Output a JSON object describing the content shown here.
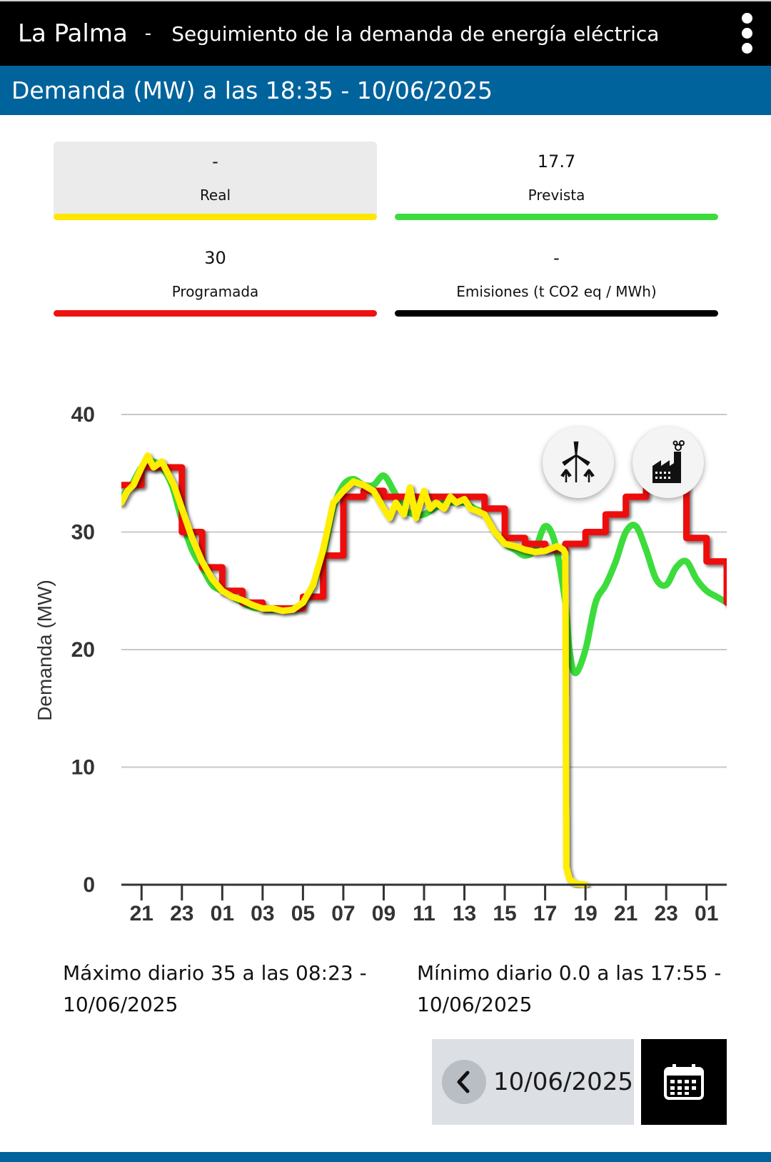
{
  "app": {
    "name": "La Palma",
    "separator": "-",
    "subtitle": "Seguimiento de la demanda de energía eléctrica"
  },
  "header": {
    "title_bold": "Demanda (MW)",
    "title_rest": " a las 18:35 - 10/06/2025"
  },
  "cards": {
    "real": {
      "value": "-",
      "label": "Real",
      "color": "#ffe600"
    },
    "prevista": {
      "value": "17.7",
      "label": "Prevista",
      "color": "#3ddc3d"
    },
    "programada": {
      "value": "30",
      "label": "Programada",
      "color": "#ee1111"
    },
    "emisiones": {
      "value": "-",
      "label": "Emisiones (t CO2 eq / MWh)",
      "color": "#000000"
    }
  },
  "icons": {
    "wind": "wind-turbine-icon",
    "factory": "factory-icon",
    "menu": "more-vert-icon",
    "back": "chevron-left-icon",
    "calendar": "calendar-icon"
  },
  "chart_data": {
    "type": "line",
    "ylabel": "Demanda (MW)",
    "ylim": [
      0,
      40
    ],
    "yticks": [
      0,
      10,
      20,
      30,
      40
    ],
    "xlim": [
      20,
      50
    ],
    "xtick_positions": [
      21,
      23,
      25,
      27,
      29,
      31,
      33,
      35,
      37,
      39,
      41,
      43,
      45,
      47,
      49
    ],
    "xtick_labels": [
      "21",
      "23",
      "01",
      "03",
      "05",
      "07",
      "09",
      "11",
      "13",
      "15",
      "17",
      "19",
      "21",
      "23",
      "01"
    ],
    "grid": true,
    "series": [
      {
        "name": "Prevista",
        "color": "#3ddc3d",
        "x": [
          20,
          20.5,
          21,
          21.5,
          22,
          22.5,
          23,
          23.5,
          24,
          24.5,
          25,
          25.5,
          26,
          26.5,
          27,
          27.5,
          28,
          28.5,
          29,
          29.5,
          30,
          30.5,
          31,
          31.5,
          32,
          32.5,
          33,
          33.5,
          34,
          34.5,
          35,
          35.5,
          36,
          36.5,
          37,
          37.5,
          38,
          38.5,
          39,
          39.5,
          40,
          40.5,
          41,
          41.5,
          42,
          42.2,
          42.5,
          43,
          43.5,
          44,
          44.5,
          45,
          45.5,
          46,
          46.5,
          47,
          47.5,
          48,
          48.5,
          49,
          49.5,
          50
        ],
        "y": [
          33,
          34,
          35.5,
          36,
          35.5,
          34,
          31,
          28.5,
          27,
          25.5,
          25,
          24.5,
          24,
          23.6,
          23.5,
          23.4,
          23.4,
          23.5,
          24,
          25.5,
          28,
          32,
          34,
          34.5,
          34,
          34,
          34.8,
          33.5,
          32,
          31.5,
          31.5,
          32,
          32.5,
          32.5,
          32.5,
          32,
          31.5,
          30,
          29,
          28.5,
          28,
          28.5,
          30.5,
          29,
          24,
          20,
          18,
          20,
          24,
          25.5,
          27.5,
          30,
          30.5,
          28.5,
          26,
          25.5,
          27,
          27.5,
          26,
          25,
          24.5,
          24
        ]
      },
      {
        "name": "Programada",
        "color": "#ee1111",
        "step": true,
        "x": [
          20,
          21,
          22,
          23,
          24,
          25,
          26,
          27,
          28,
          29,
          30,
          31,
          32,
          33,
          34,
          35,
          36,
          37,
          38,
          39,
          40,
          41,
          42,
          43,
          44,
          45,
          46,
          47,
          48,
          49,
          50
        ],
        "y": [
          34,
          35.5,
          35.5,
          30,
          27,
          25,
          24,
          23.5,
          23.5,
          24.5,
          28,
          33,
          33.5,
          33,
          33,
          33,
          33,
          33,
          32,
          29.5,
          29,
          28.5,
          29,
          30,
          31.5,
          33,
          35.5,
          34,
          29.5,
          27.5,
          24
        ]
      },
      {
        "name": "Real",
        "color": "#ffee00",
        "x": [
          20,
          20.3,
          20.6,
          21,
          21.3,
          21.6,
          22,
          22.3,
          22.6,
          23,
          23.5,
          24,
          24.5,
          25,
          25.5,
          26,
          26.5,
          27,
          27.5,
          28,
          28.5,
          29,
          29.5,
          30,
          30.5,
          31,
          31.5,
          32,
          32.5,
          33,
          33.3,
          33.6,
          34,
          34.3,
          34.6,
          35,
          35.3,
          35.6,
          36,
          36.3,
          36.6,
          37,
          37.3,
          37.6,
          38,
          38.5,
          39,
          39.5,
          40,
          40.5,
          41,
          41.3,
          41.6,
          41.9,
          42.0,
          42.05,
          42.2,
          42.5,
          43
        ],
        "y": [
          32.5,
          33.5,
          34,
          35.5,
          36.5,
          35.5,
          36,
          35,
          34,
          32,
          29.5,
          27.5,
          26,
          25,
          24.5,
          24.2,
          23.8,
          23.5,
          23.5,
          23.3,
          23.4,
          24,
          25.5,
          28.5,
          32.5,
          33.5,
          34.3,
          34,
          33.5,
          32,
          31.2,
          32.5,
          31.5,
          33.8,
          31.2,
          33.5,
          32,
          32.5,
          32,
          33,
          32.5,
          32.8,
          32,
          31.8,
          31.5,
          30,
          29,
          28.8,
          28.5,
          28.3,
          28.4,
          28.6,
          28.8,
          28.5,
          28.2,
          1.5,
          0.5,
          0.1,
          0
        ]
      }
    ]
  },
  "stats": {
    "max": "Máximo diario 35 a las 08:23 - 10/06/2025",
    "min": "Mínimo diario 0.0 a las 17:55 - 10/06/2025"
  },
  "date_selector": {
    "date": "10/06/2025"
  }
}
